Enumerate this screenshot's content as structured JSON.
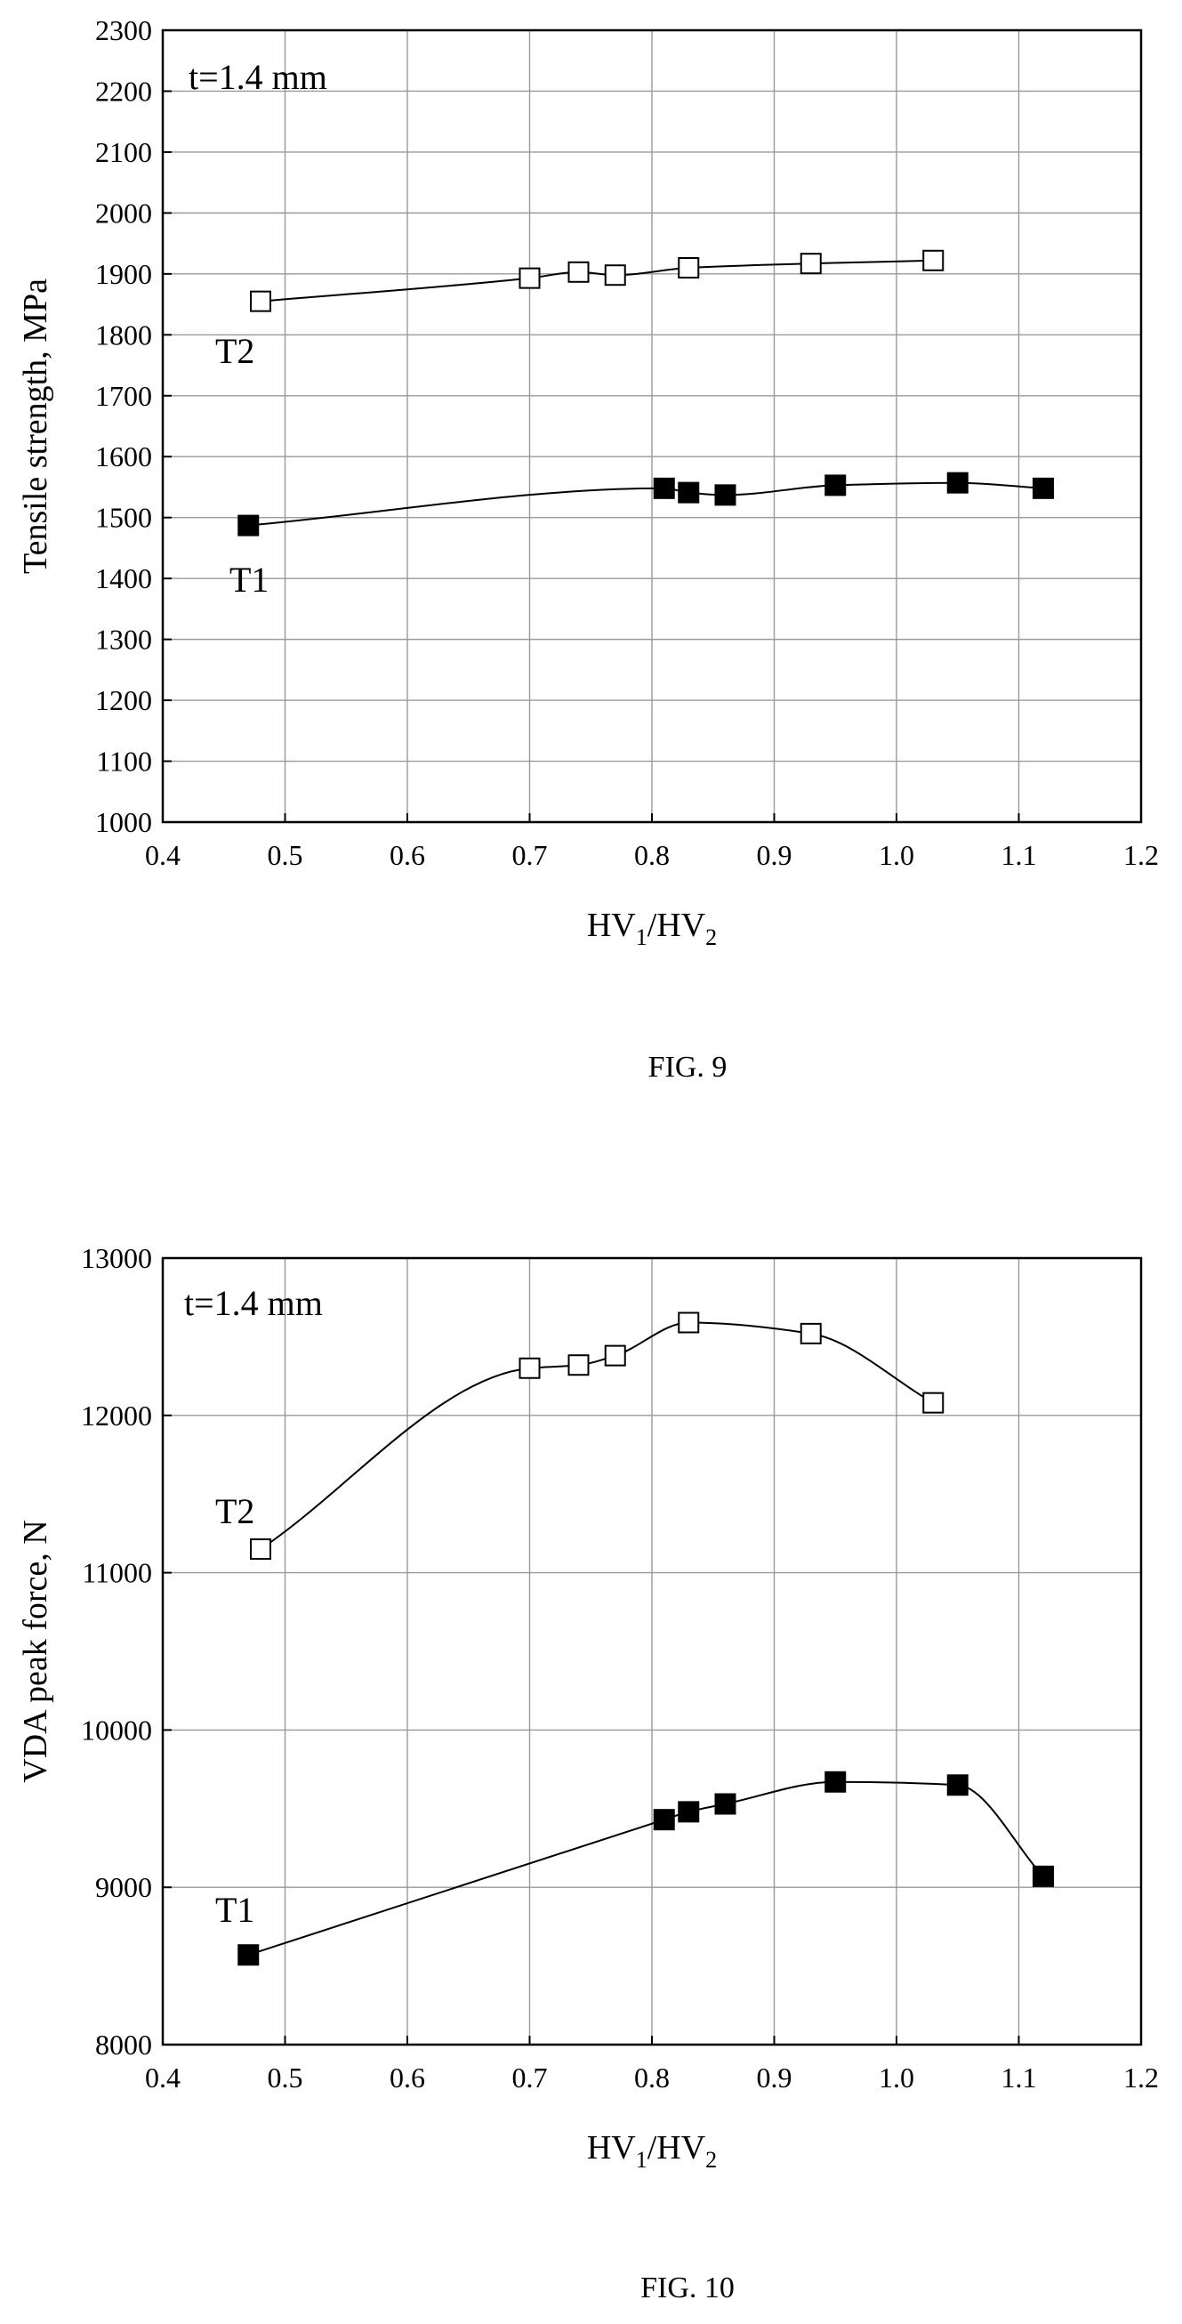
{
  "figures": [
    {
      "caption": "FIG. 9",
      "chart_data": {
        "type": "line",
        "annotations": [
          "t=1.4 mm"
        ],
        "ylabel": "Tensile strength, MPa",
        "xlabel": {
          "base1": "HV",
          "sub1": "1",
          "mid": "/HV",
          "sub2": "2"
        },
        "xlim": [
          0.4,
          1.2
        ],
        "ylim": [
          1000,
          2300
        ],
        "xticks": [
          "0.4",
          "0.5",
          "0.6",
          "0.7",
          "0.8",
          "0.9",
          "1.0",
          "1.1",
          "1.2"
        ],
        "yticks": [
          "1000",
          "1100",
          "1200",
          "1300",
          "1400",
          "1500",
          "1600",
          "1700",
          "1800",
          "1900",
          "2000",
          "2100",
          "2200",
          "2300"
        ],
        "grid": true,
        "series": [
          {
            "name": "T2",
            "marker": "open-square",
            "x": [
              0.48,
              0.7,
              0.74,
              0.77,
              0.83,
              0.93,
              1.03
            ],
            "y": [
              1855,
              1893,
              1903,
              1898,
              1910,
              1917,
              1922
            ]
          },
          {
            "name": "T1",
            "marker": "filled-square",
            "x": [
              0.47,
              0.81,
              0.83,
              0.86,
              0.95,
              1.05,
              1.12
            ],
            "y": [
              1487,
              1548,
              1541,
              1537,
              1553,
              1557,
              1548
            ]
          }
        ]
      }
    },
    {
      "caption": "FIG. 10",
      "chart_data": {
        "type": "line",
        "annotations": [
          "t=1.4 mm"
        ],
        "ylabel": "VDA peak force, N",
        "xlabel": {
          "base1": "HV",
          "sub1": "1",
          "mid": "/HV",
          "sub2": "2"
        },
        "xlim": [
          0.4,
          1.2
        ],
        "ylim": [
          8000,
          13000
        ],
        "xticks": [
          "0.4",
          "0.5",
          "0.6",
          "0.7",
          "0.8",
          "0.9",
          "1.0",
          "1.1",
          "1.2"
        ],
        "yticks": [
          "8000",
          "9000",
          "10000",
          "11000",
          "12000",
          "13000"
        ],
        "grid": true,
        "series": [
          {
            "name": "T2",
            "marker": "open-square",
            "x": [
              0.48,
              0.7,
              0.74,
              0.77,
              0.83,
              0.93,
              1.03
            ],
            "y": [
              11150,
              12300,
              12320,
              12380,
              12590,
              12520,
              12080
            ]
          },
          {
            "name": "T1",
            "marker": "filled-square",
            "x": [
              0.47,
              0.81,
              0.83,
              0.86,
              0.95,
              1.05,
              1.12
            ],
            "y": [
              8570,
              9430,
              9480,
              9530,
              9670,
              9650,
              9070
            ]
          }
        ]
      }
    }
  ]
}
